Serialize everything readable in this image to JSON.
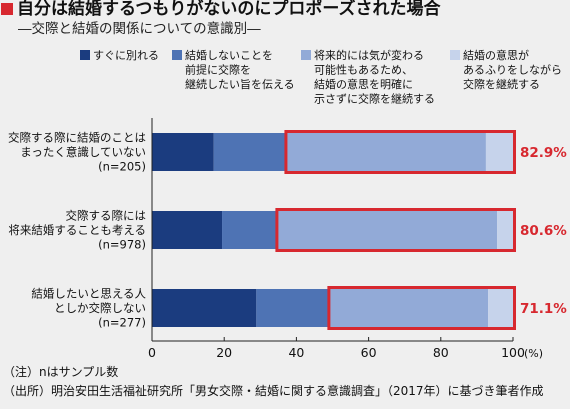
{
  "colors": {
    "background": "#efefef",
    "text": "#111111",
    "accent_red": "#d7282f",
    "axis": "#222222"
  },
  "chart_data": {
    "type": "bar",
    "orientation": "horizontal",
    "stacked": true,
    "title": "自分は結婚するつもりがないのにプロポーズされた場合",
    "subtitle": "―交際と結婚の関係についての意識別―",
    "categories": [
      {
        "label_lines": [
          "交際する際に結婚のことは",
          "まったく意識していない"
        ],
        "n": "(n=205)"
      },
      {
        "label_lines": [
          "交際する際には",
          "将来結婚することも考える"
        ],
        "n": "(n=978)"
      },
      {
        "label_lines": [
          "結婚したいと思える人",
          "としか交際しない"
        ],
        "n": "(n=277)"
      }
    ],
    "series": [
      {
        "name_lines": [
          "すぐに別れる"
        ],
        "color": "#1b3c7f",
        "values": [
          17.1,
          19.4,
          28.9
        ]
      },
      {
        "name_lines": [
          "結婚しないことを",
          "前提に交際を",
          "継続したい旨を伝える"
        ],
        "color": "#4e73b4",
        "values": [
          20.0,
          15.2,
          20.1
        ]
      },
      {
        "name_lines": [
          "将来的には気が変わる",
          "可能性もあるため、",
          "結婚の意思を明確に",
          "示さずに交際を継続する"
        ],
        "color": "#92aad7",
        "values": [
          55.4,
          61.0,
          44.1
        ]
      },
      {
        "name_lines": [
          "結婚の意思が",
          "あるふりをしながら",
          "交際を継続する"
        ],
        "color": "#c6d3eb",
        "values": [
          7.5,
          4.4,
          6.9
        ]
      }
    ],
    "xlim": [
      0,
      100
    ],
    "x_ticks": [
      0,
      20,
      40,
      60,
      80,
      100
    ],
    "x_unit": "(%)",
    "legend_position": "top",
    "grid": false,
    "highlight": {
      "series_from": 2,
      "labels": [
        "82.9%",
        "80.6%",
        "71.1%"
      ],
      "color": "#d7282f"
    }
  },
  "notes": [
    "（注）nはサンプル数",
    "（出所）明治安田生活福祉研究所「男女交際・結婚に関する意識調査」（2017年）に基づき筆者作成"
  ]
}
